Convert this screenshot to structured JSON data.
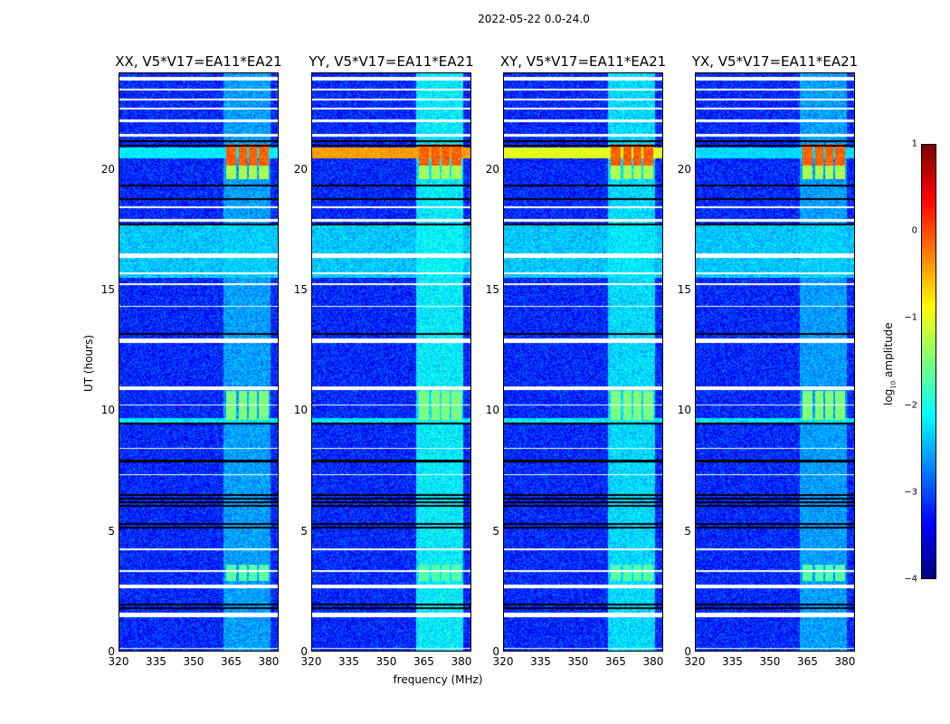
{
  "chart_data": {
    "type": "heatmap",
    "title": "2022-05-22 0.0-24.0",
    "xlabel": "frequency (MHz)",
    "ylabel": "UT (hours)",
    "xlim": [
      320,
      384
    ],
    "ylim": [
      0,
      24
    ],
    "xticks": [
      "320",
      "335",
      "350",
      "365",
      "380"
    ],
    "yticks": [
      "0",
      "5",
      "10",
      "15",
      "20"
    ],
    "colormap": "jet",
    "colorbar": {
      "label_prefix": "log",
      "label_sub": "10",
      "label_suffix": " amplitude",
      "clim": [
        -4,
        1
      ],
      "ticks": [
        "1",
        "0",
        "−1",
        "−2",
        "−3",
        "−4"
      ],
      "tick_values": [
        1,
        0,
        -1,
        -2,
        -3,
        -4
      ]
    },
    "background_log_amplitude": -3.2,
    "panels": [
      {
        "title": "XX, V5*V17=EA11*EA21",
        "rfi_level": -2.6,
        "wide_band_2021": -2.2
      },
      {
        "title": "YY, V5*V17=EA11*EA21",
        "rfi_level": -2.2,
        "wide_band_2021": -0.4
      },
      {
        "title": "XY, V5*V17=EA11*EA21",
        "rfi_level": -2.3,
        "wide_band_2021": -1.0
      },
      {
        "title": "YX, V5*V17=EA11*EA21",
        "rfi_level": -2.6,
        "wide_band_2021": -2.3
      }
    ],
    "rfi_channels_mhz": [
      [
        363,
        367
      ],
      [
        368,
        371.5
      ],
      [
        372,
        375.5
      ],
      [
        376,
        380
      ]
    ],
    "features": [
      {
        "t": [
          20.2,
          21.1
        ],
        "f": "rfi",
        "value": -0.1
      },
      {
        "t": [
          19.6,
          20.2
        ],
        "f": "rfi",
        "value": -1.3
      },
      {
        "t": [
          9.6,
          10.8
        ],
        "f": "rfi",
        "value": -1.5
      },
      {
        "t": [
          2.9,
          3.6
        ],
        "f": "rfi",
        "value": -1.7
      },
      {
        "t": [
          15.5,
          17.7
        ],
        "f": "all",
        "value": -2.4
      },
      {
        "t": [
          9.5,
          9.7
        ],
        "f": "all",
        "value": -2.2
      }
    ],
    "flagged_hours": [
      [
        23.7,
        23.85
      ],
      [
        23.3,
        23.38
      ],
      [
        22.9,
        22.98
      ],
      [
        22.5,
        22.6
      ],
      [
        22.0,
        22.1
      ],
      [
        21.4,
        21.5
      ],
      [
        18.4,
        18.5
      ],
      [
        17.85,
        17.95
      ],
      [
        16.35,
        16.55
      ],
      [
        15.65,
        15.75
      ],
      [
        15.2,
        15.28
      ],
      [
        14.3,
        14.36
      ],
      [
        12.8,
        12.98
      ],
      [
        10.85,
        11.0
      ],
      [
        10.2,
        10.26
      ],
      [
        8.4,
        8.46
      ],
      [
        7.3,
        7.36
      ],
      [
        4.2,
        4.26
      ],
      [
        3.3,
        3.36
      ],
      [
        2.6,
        2.78
      ],
      [
        1.4,
        1.58
      ],
      [
        0.1,
        0.15
      ]
    ],
    "gap_hours": [
      21.2,
      21.0,
      19.35,
      18.8,
      17.75,
      13.2,
      9.45,
      7.9,
      6.5,
      6.35,
      6.2,
      6.05,
      5.3,
      5.15,
      1.95,
      1.8
    ]
  }
}
